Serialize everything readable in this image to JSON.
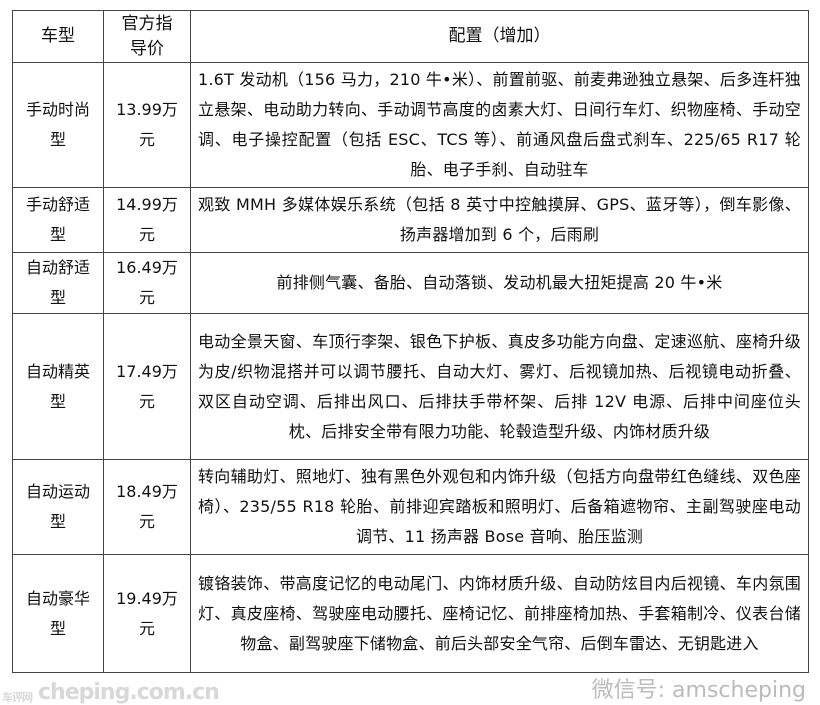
{
  "table": {
    "headers": [
      "车型",
      "官方指导价",
      "配置（增加）"
    ],
    "rows": [
      {
        "model": "手动时尚型",
        "price": "13.99万元",
        "config": "1.6T 发动机（156 马力，210 牛•米）、前置前驱、前麦弗逊独立悬架、后多连杆独立悬架、电动助力转向、手动调节高度的卤素大灯、日间行车灯、织物座椅、手动空调、电子操控配置（包括 ESC、TCS 等）、前通风盘后盘式刹车、225/65 R17 轮胎、电子手刹、自动驻车"
      },
      {
        "model": "手动舒适型",
        "price": "14.99万元",
        "config": "观致 MMH 多媒体娱乐系统（包括 8 英寸中控触摸屏、GPS、蓝牙等），倒车影像、扬声器增加到 6 个，后雨刷"
      },
      {
        "model": "自动舒适型",
        "price": "16.49万元",
        "config": "前排侧气囊、备胎、自动落锁、发动机最大扭矩提高 20 牛•米"
      },
      {
        "model": "自动精英型",
        "price": "17.49万元",
        "config": "电动全景天窗、车顶行李架、银色下护板、真皮多功能方向盘、定速巡航、座椅升级为皮/织物混搭并可以调节腰托、自动大灯、雾灯、后视镜加热、后视镜电动折叠、双区自动空调、后排出风口、后排扶手带杯架、后排 12V 电源、后排中间座位头枕、后排安全带有限力功能、轮毂造型升级、内饰材质升级"
      },
      {
        "model": "自动运动型",
        "price": "18.49万元",
        "config": "转向辅助灯、照地灯、独有黑色外观包和内饰升级（包括方向盘带红色缝线、双色座椅）、235/55 R18 轮胎、前排迎宾踏板和照明灯、后备箱遮物帘、主副驾驶座电动调节、11 扬声器 Bose 音响、胎压监测"
      },
      {
        "model": "自动豪华型",
        "price": "19.49万元",
        "config": "镀铬装饰、带高度记忆的电动尾门、内饰材质升级、自动防炫目内后视镜、车内氛围灯、真皮座椅、驾驶座电动腰托、座椅记忆、前排座椅加热、手套箱制冷、仪表台储物盒、副驾驶座下储物盒、前后头部安全气帘、后倒车雷达、无钥匙进入"
      }
    ]
  },
  "watermarks": {
    "site_small": "车评网",
    "site": "cheping.com.cn",
    "wechat": "微信号: amscheping"
  }
}
